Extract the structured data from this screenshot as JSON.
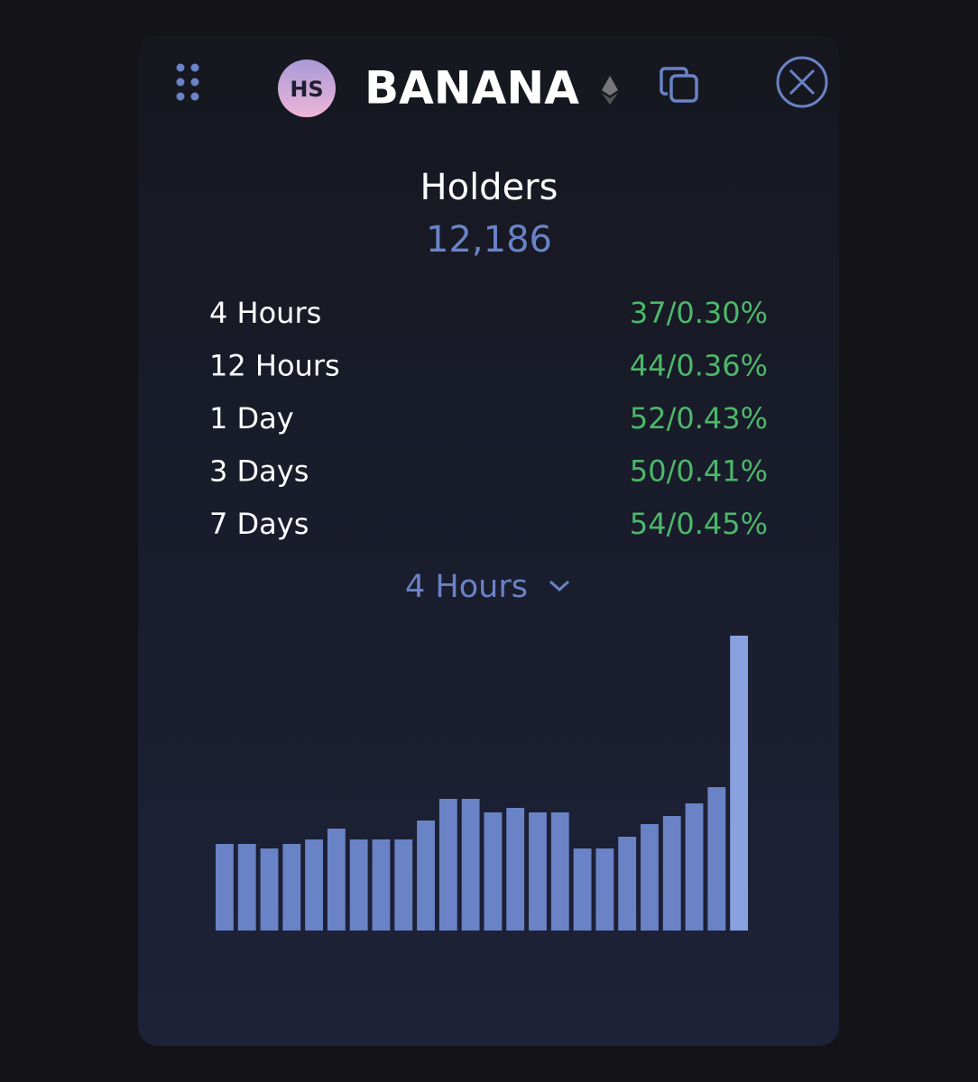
{
  "header": {
    "logo": "HS",
    "title": "BANANA"
  },
  "stats": {
    "title": "Holders",
    "value": "12,186",
    "rows": [
      {
        "label": "4 Hours",
        "value": "37/0.30%"
      },
      {
        "label": "12 Hours",
        "value": "44/0.36%"
      },
      {
        "label": "1 Day",
        "value": "52/0.43%"
      },
      {
        "label": "3 Days",
        "value": "50/0.41%"
      },
      {
        "label": "7 Days",
        "value": "54/0.45%"
      }
    ]
  },
  "selector": "4 Hours",
  "chart_data": {
    "type": "bar",
    "color": "#6a83c6",
    "highlight_color": "#8aa1e0",
    "values": [
      96,
      96,
      91,
      96,
      101,
      113,
      101,
      101,
      101,
      122,
      146,
      146,
      131,
      136,
      131,
      131,
      91,
      91,
      104,
      118,
      127,
      141,
      159,
      327
    ]
  }
}
